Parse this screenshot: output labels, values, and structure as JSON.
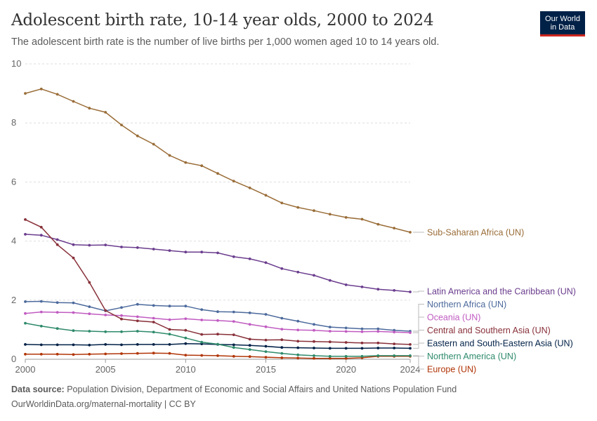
{
  "header": {
    "title": "Adolescent birth rate, 10-14 year olds, 2000 to 2024",
    "subtitle": "The adolescent birth rate is the number of live births per 1,000 women aged 10 to 14 years old."
  },
  "logo": {
    "line1": "Our World",
    "line2": "in Data"
  },
  "footer": {
    "source_label": "Data source:",
    "source_text": "Population Division, Department of Economic and Social Affairs and United Nations Population Fund",
    "url_text": "OurWorldinData.org/maternal-mortality | CC BY"
  },
  "chart_data": {
    "type": "line",
    "title": "Adolescent birth rate, 10-14 year olds, 2000 to 2024",
    "xlim": [
      2000,
      2024
    ],
    "ylim": [
      0,
      10
    ],
    "x_ticks": [
      2000,
      2005,
      2010,
      2015,
      2020,
      2024
    ],
    "y_ticks": [
      0,
      2,
      4,
      6,
      8,
      10
    ],
    "grid": "horizontal dashed",
    "legend": "right, inline labels",
    "x": [
      2000,
      2001,
      2002,
      2003,
      2004,
      2005,
      2006,
      2007,
      2008,
      2009,
      2010,
      2011,
      2012,
      2013,
      2014,
      2015,
      2016,
      2017,
      2018,
      2019,
      2020,
      2021,
      2022,
      2023,
      2024
    ],
    "series": [
      {
        "name": "Sub-Saharan Africa (UN)",
        "color": "#9a6d38",
        "values": [
          9.0,
          9.15,
          8.97,
          8.73,
          8.5,
          8.36,
          7.93,
          7.56,
          7.28,
          6.9,
          6.66,
          6.55,
          6.29,
          6.03,
          5.8,
          5.55,
          5.29,
          5.14,
          5.03,
          4.91,
          4.8,
          4.74,
          4.57,
          4.44,
          4.3
        ]
      },
      {
        "name": "Latin America and the Caribbean (UN)",
        "color": "#6b3d8e",
        "values": [
          4.23,
          4.2,
          4.05,
          3.88,
          3.86,
          3.87,
          3.8,
          3.78,
          3.73,
          3.68,
          3.63,
          3.63,
          3.6,
          3.47,
          3.4,
          3.27,
          3.07,
          2.95,
          2.84,
          2.67,
          2.52,
          2.45,
          2.37,
          2.33,
          2.28
        ]
      },
      {
        "name": "Northern Africa (UN)",
        "color": "#4c6a9c",
        "values": [
          1.95,
          1.96,
          1.92,
          1.91,
          1.78,
          1.64,
          1.75,
          1.86,
          1.82,
          1.8,
          1.8,
          1.68,
          1.61,
          1.6,
          1.57,
          1.52,
          1.39,
          1.29,
          1.18,
          1.09,
          1.06,
          1.03,
          1.03,
          0.98,
          0.95
        ]
      },
      {
        "name": "Oceania (UN)",
        "color": "#c15cc1",
        "values": [
          1.55,
          1.6,
          1.59,
          1.58,
          1.54,
          1.5,
          1.48,
          1.44,
          1.39,
          1.34,
          1.37,
          1.33,
          1.31,
          1.28,
          1.18,
          1.1,
          1.02,
          0.99,
          0.98,
          0.95,
          0.94,
          0.93,
          0.94,
          0.92,
          0.9
        ]
      },
      {
        "name": "Central and Southern Asia (UN)",
        "color": "#883039",
        "values": [
          4.73,
          4.47,
          3.88,
          3.43,
          2.6,
          1.65,
          1.36,
          1.3,
          1.26,
          1.01,
          0.98,
          0.84,
          0.85,
          0.83,
          0.68,
          0.65,
          0.66,
          0.61,
          0.6,
          0.59,
          0.57,
          0.55,
          0.55,
          0.52,
          0.5
        ]
      },
      {
        "name": "Eastern and South-Eastern Asia (UN)",
        "color": "#002147",
        "values": [
          0.5,
          0.49,
          0.49,
          0.49,
          0.48,
          0.5,
          0.49,
          0.5,
          0.5,
          0.5,
          0.53,
          0.52,
          0.5,
          0.49,
          0.47,
          0.44,
          0.4,
          0.39,
          0.38,
          0.37,
          0.37,
          0.37,
          0.38,
          0.38,
          0.37
        ]
      },
      {
        "name": "Europe (UN)",
        "color": "#b13507",
        "values": [
          0.17,
          0.17,
          0.17,
          0.16,
          0.17,
          0.18,
          0.19,
          0.2,
          0.21,
          0.2,
          0.14,
          0.13,
          0.12,
          0.1,
          0.09,
          0.07,
          0.05,
          0.04,
          0.03,
          0.03,
          0.03,
          0.05,
          0.1,
          0.1,
          0.1
        ]
      },
      {
        "name": "Northern America (UN)",
        "color": "#2e8a6a",
        "values": [
          1.22,
          1.12,
          1.04,
          0.97,
          0.95,
          0.93,
          0.93,
          0.95,
          0.92,
          0.85,
          0.72,
          0.58,
          0.51,
          0.4,
          0.33,
          0.26,
          0.2,
          0.15,
          0.12,
          0.1,
          0.1,
          0.1,
          0.12,
          0.12,
          0.12
        ]
      }
    ]
  }
}
